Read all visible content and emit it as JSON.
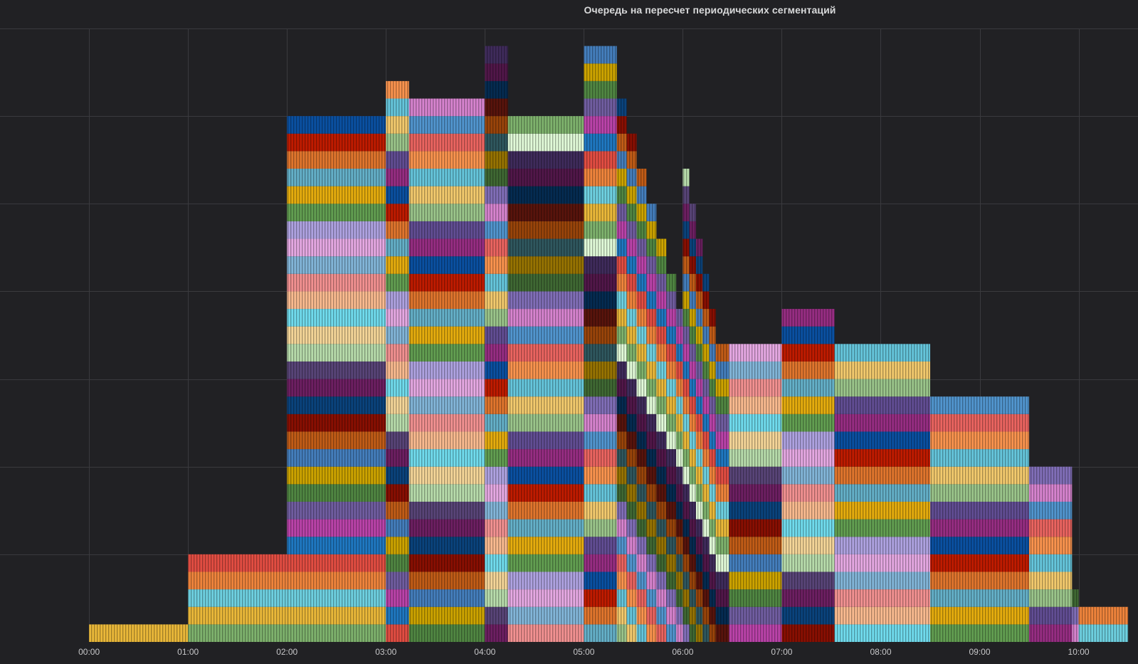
{
  "panel": {
    "title": "Очередь на пересчет периодических сегментаций"
  },
  "colors": {
    "background": "#212124",
    "grid": "#3a3a3e",
    "text": "#c7c7c9",
    "palette": [
      "#7eb26d",
      "#eab839",
      "#6ed0e0",
      "#ef843c",
      "#e24d42",
      "#1f78c1",
      "#ba43a9",
      "#705da0",
      "#508642",
      "#cca300",
      "#447ebc",
      "#c15c17",
      "#890f02",
      "#0a437c",
      "#6d1f62",
      "#584477",
      "#b7dbab",
      "#f4d598",
      "#70dbed",
      "#f9ba8f",
      "#f29191",
      "#82b5d8",
      "#e5a8e2",
      "#aea2e0",
      "#629e51",
      "#e5ac0e",
      "#64b0c8",
      "#e0752d",
      "#bf1b00",
      "#0a50a1",
      "#962d82",
      "#614d93",
      "#9ac48a",
      "#f2c96d",
      "#65c5db",
      "#f9934e",
      "#ea6460",
      "#5195ce",
      "#d683ce",
      "#806eb7",
      "#3f6833",
      "#967302",
      "#2f575e",
      "#99440a",
      "#58140c",
      "#052b51",
      "#511749",
      "#3f2b5b",
      "#e0f9d7"
    ]
  },
  "chart_data": {
    "type": "bar",
    "stacked": true,
    "title": "Очередь на пересчет периодических сегментаций",
    "xlabel": "",
    "ylabel": "",
    "unit_note": "y = number of stacked series segments in queue",
    "x_ticks": [
      "00:00",
      "01:00",
      "02:00",
      "03:00",
      "04:00",
      "05:00",
      "06:00",
      "07:00",
      "08:00",
      "09:00",
      "10:00"
    ],
    "x_range_hours": [
      -0.9,
      10.6
    ],
    "ylim": [
      0,
      35
    ],
    "y_gridlines": [
      5,
      10,
      15,
      20,
      25,
      30,
      35
    ],
    "grid": true,
    "legend": "none",
    "intervals": [
      {
        "start": "00:00",
        "end": "01:00",
        "count": 1,
        "palette_offset": 1
      },
      {
        "start": "01:00",
        "end": "02:00",
        "count": 5,
        "palette_offset": 0
      },
      {
        "start": "02:00",
        "end": "03:00",
        "count": 30,
        "palette_offset": 0
      },
      {
        "start": "03:00",
        "end": "03:14",
        "count": 32,
        "palette_offset": 4
      },
      {
        "start": "03:14",
        "end": "04:00",
        "count": 31,
        "palette_offset": 8
      },
      {
        "start": "04:00",
        "end": "04:14",
        "count": 34,
        "palette_offset": 14
      },
      {
        "start": "04:14",
        "end": "05:00",
        "count": 30,
        "palette_offset": 20
      },
      {
        "start": "05:00",
        "end": "05:20",
        "count": 34,
        "palette_offset": 26
      },
      {
        "start": "05:20",
        "end": "05:26",
        "count": 31,
        "palette_offset": 32
      },
      {
        "start": "05:26",
        "end": "05:32",
        "count": 29,
        "palette_offset": 33
      },
      {
        "start": "05:32",
        "end": "05:38",
        "count": 27,
        "palette_offset": 34
      },
      {
        "start": "05:38",
        "end": "05:44",
        "count": 25,
        "palette_offset": 35
      },
      {
        "start": "05:44",
        "end": "05:50",
        "count": 23,
        "palette_offset": 36
      },
      {
        "start": "05:50",
        "end": "05:56",
        "count": 21,
        "palette_offset": 37
      },
      {
        "start": "05:56",
        "end": "06:00",
        "count": 19,
        "palette_offset": 38
      },
      {
        "start": "06:00",
        "end": "06:04",
        "count": 27,
        "palette_offset": 39
      },
      {
        "start": "06:04",
        "end": "06:08",
        "count": 25,
        "palette_offset": 40
      },
      {
        "start": "06:08",
        "end": "06:12",
        "count": 23,
        "palette_offset": 41
      },
      {
        "start": "06:12",
        "end": "06:16",
        "count": 21,
        "palette_offset": 42
      },
      {
        "start": "06:16",
        "end": "06:20",
        "count": 19,
        "palette_offset": 43
      },
      {
        "start": "06:20",
        "end": "06:28",
        "count": 17,
        "palette_offset": 44
      },
      {
        "start": "06:28",
        "end": "07:00",
        "count": 17,
        "palette_offset": 6
      },
      {
        "start": "07:00",
        "end": "07:32",
        "count": 19,
        "palette_offset": 12
      },
      {
        "start": "07:32",
        "end": "08:30",
        "count": 17,
        "palette_offset": 18
      },
      {
        "start": "08:30",
        "end": "09:30",
        "count": 14,
        "palette_offset": 24
      },
      {
        "start": "09:30",
        "end": "09:56",
        "count": 10,
        "palette_offset": 30
      },
      {
        "start": "09:56",
        "end": "10:00",
        "count": 3,
        "palette_offset": 38
      },
      {
        "start": "10:00",
        "end": "10:30",
        "count": 2,
        "palette_offset": 2
      }
    ]
  }
}
